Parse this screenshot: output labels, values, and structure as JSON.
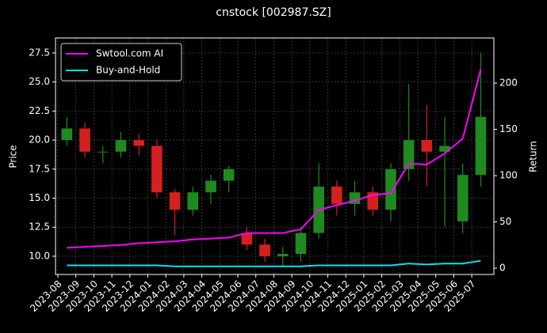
{
  "chart_data": {
    "type": "candlestick",
    "title": "cnstock [002987.SZ]",
    "ylabel": "Price",
    "y2label": "Return",
    "categories": [
      "2023-08",
      "2023-09",
      "2023-10",
      "2023-11",
      "2023-12",
      "2024-01",
      "2024-02",
      "2024-03",
      "2024-04",
      "2024-05",
      "2024-06",
      "2024-07",
      "2024-08",
      "2024-09",
      "2024-10",
      "2024-11",
      "2024-12",
      "2025-01",
      "2025-02",
      "2025-03",
      "2025-04",
      "2025-05",
      "2025-06",
      "2025-07"
    ],
    "open": [
      20,
      21,
      19,
      19,
      20,
      19.5,
      15.5,
      14,
      15.5,
      16.5,
      12,
      11,
      10,
      10.2,
      12,
      16,
      14.5,
      15.5,
      14,
      17.5,
      20,
      19,
      13,
      17
    ],
    "high": [
      22,
      21.5,
      19.5,
      20.7,
      20.5,
      20,
      15.8,
      16,
      17,
      17.8,
      12.5,
      11.5,
      10.8,
      12.5,
      18,
      16.5,
      16.5,
      16,
      18,
      24.8,
      23,
      22,
      18,
      27.5
    ],
    "low": [
      19.5,
      18.5,
      18,
      18.5,
      18.7,
      15,
      11.8,
      13.5,
      14.5,
      15.5,
      10.5,
      9.5,
      9.1,
      9.5,
      11.5,
      13.5,
      13.5,
      13.5,
      13,
      16.5,
      16,
      12.5,
      12,
      16
    ],
    "close": [
      21,
      19,
      19,
      20,
      19.5,
      15.5,
      14,
      15.5,
      16.5,
      17.5,
      11,
      10,
      10.2,
      12,
      16,
      14.5,
      15.5,
      14,
      17.5,
      20,
      19,
      19.5,
      17,
      22
    ],
    "up_color": "#1f8a1f",
    "down_color": "#d42020",
    "series": [
      {
        "name": "Swtool.com AI",
        "color": "#ff00ff",
        "axis": "y2",
        "values": [
          22,
          23,
          24,
          25,
          27,
          28,
          29,
          31,
          32,
          33,
          38,
          38,
          38,
          42,
          63,
          68,
          73,
          79,
          81,
          113,
          112,
          124,
          140,
          215
        ]
      },
      {
        "name": "Buy-and-Hold",
        "color": "#00e5ee",
        "axis": "y2",
        "values": [
          3,
          3,
          3,
          3,
          3,
          3,
          2,
          2,
          2,
          2,
          2,
          2,
          2,
          2,
          3,
          3,
          3,
          3,
          3,
          5,
          4,
          5,
          5,
          8
        ]
      }
    ],
    "ylim": [
      8.43,
      28.79
    ],
    "yticks": [
      {
        "value": 10,
        "label": "10.0"
      },
      12.5,
      {
        "value": 15,
        "label": "15.0"
      },
      17.5,
      {
        "value": 20,
        "label": "20.0"
      },
      22.5,
      {
        "value": 25,
        "label": "25.0"
      },
      27.5
    ],
    "y2lim": [
      -6.8,
      248.7
    ],
    "y2ticks": [
      0,
      50,
      100,
      150,
      200
    ],
    "grid": true,
    "legend": "upper left"
  }
}
